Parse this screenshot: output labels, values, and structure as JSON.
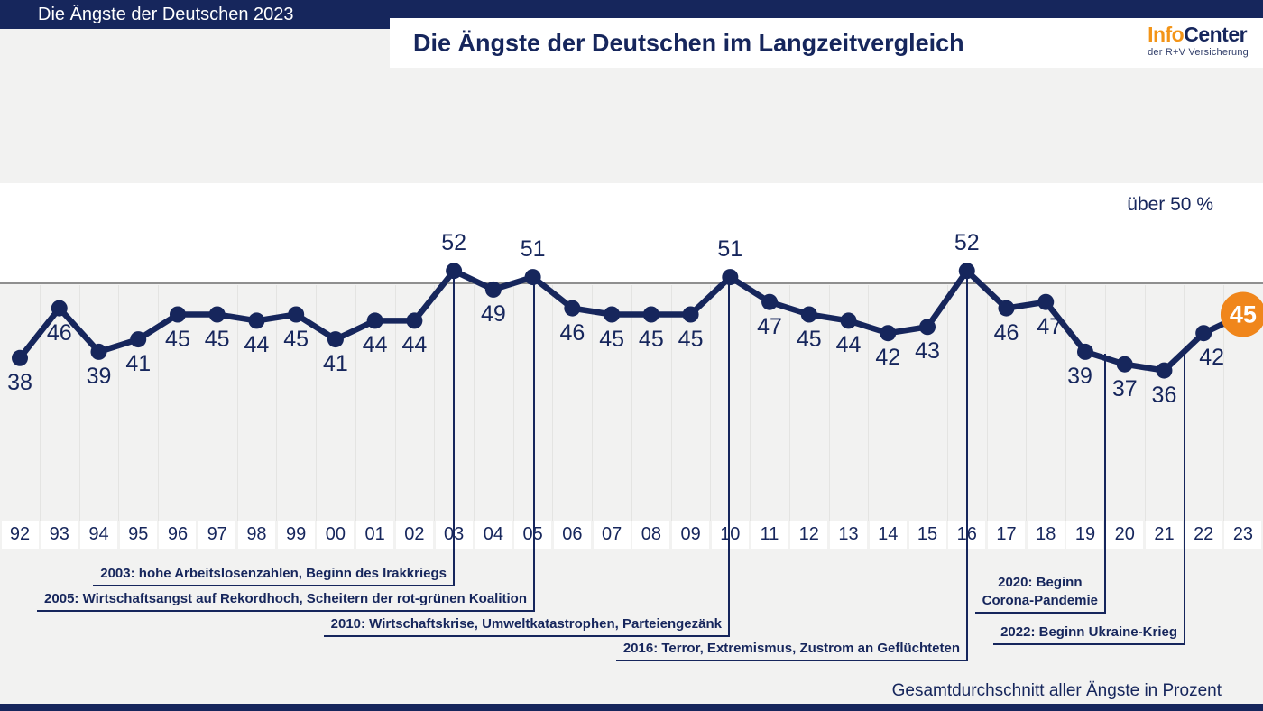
{
  "banner": {
    "title": "Die Ängste der Deutschen 2023"
  },
  "header": {
    "title": "Die Ängste der Deutschen im Langzeitvergleich"
  },
  "logo": {
    "part1": "Info",
    "part2": "Center",
    "subtitle": "der R+V Versicherung"
  },
  "labels": {
    "threshold": "über 50 %",
    "footer_note": "Gesamtdurchschnitt aller Ängste in Prozent"
  },
  "colors": {
    "navy": "#16265C",
    "orange_highlight": "#F0861B",
    "logo_orange": "#F39417",
    "background_gray": "#F2F2F1",
    "threshold_line_gray": "#8F8F8F",
    "band_white": "#FFFFFF"
  },
  "chart_data": {
    "type": "line",
    "title": "Die Ängste der Deutschen im Langzeitvergleich",
    "categories": [
      "92",
      "93",
      "94",
      "95",
      "96",
      "97",
      "98",
      "99",
      "00",
      "01",
      "02",
      "03",
      "04",
      "05",
      "06",
      "07",
      "08",
      "09",
      "10",
      "11",
      "12",
      "13",
      "14",
      "15",
      "16",
      "17",
      "18",
      "19",
      "20",
      "21",
      "22",
      "23"
    ],
    "values": [
      38,
      46,
      39,
      41,
      45,
      45,
      44,
      45,
      41,
      44,
      44,
      52,
      49,
      51,
      46,
      45,
      45,
      45,
      51,
      47,
      45,
      44,
      42,
      43,
      52,
      46,
      47,
      39,
      37,
      36,
      42,
      45
    ],
    "unit": "percent",
    "ylabel": "Gesamtdurchschnitt aller Ängste in Prozent",
    "threshold": 50,
    "threshold_label": "über 50 %",
    "legend": "none",
    "grid": "vertical",
    "highlight": {
      "category": "23",
      "value": 45
    },
    "annotations": [
      {
        "year": "2003",
        "lines": [
          "2003: hohe Arbeitslosenzahlen, Beginn des Irakkriegs"
        ]
      },
      {
        "year": "2005",
        "lines": [
          "2005: Wirtschaftsangst auf Rekordhoch, Scheitern der rot-grünen Koalition"
        ]
      },
      {
        "year": "2010",
        "lines": [
          "2010: Wirtschaftskrise, Umweltkatastrophen, Parteiengezänk"
        ]
      },
      {
        "year": "2016",
        "lines": [
          "2016: Terror, Extremismus, Zustrom an Geflüchteten"
        ]
      },
      {
        "year": "2020",
        "lines": [
          "2020: Beginn",
          "Corona-Pandemie"
        ]
      },
      {
        "year": "2022",
        "lines": [
          "2022: Beginn Ukraine-Krieg"
        ]
      }
    ]
  }
}
